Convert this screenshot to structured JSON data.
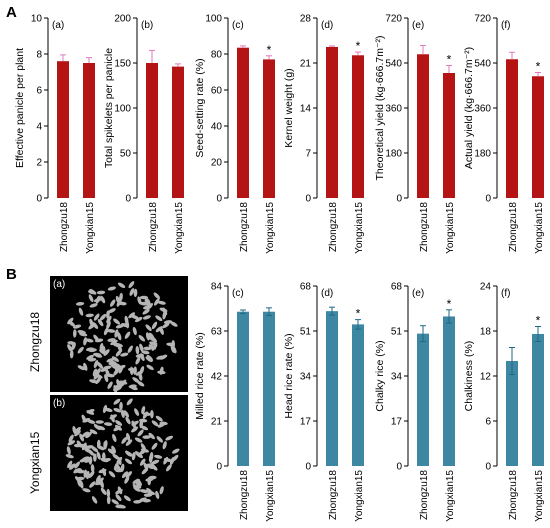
{
  "panel_letters": [
    "A",
    "B"
  ],
  "variety_labels": [
    "Zhongzu18",
    "Yongxian15"
  ],
  "photo_labels": [
    "(a)",
    "(b)"
  ],
  "colors": {
    "red_bar": "#b41414",
    "blue_bar": "#3d87a3",
    "photo_bg": "#000000",
    "grain": "#b5b5b5"
  },
  "chart_data": [
    {
      "type": "bar",
      "group": "A",
      "panel": "(a)",
      "ylabel": "Effective panicle per plant",
      "categories": [
        "Zhongzu18",
        "Yongxian15"
      ],
      "values": [
        7.6,
        7.5
      ],
      "errors": [
        0.35,
        0.3
      ],
      "ylim": [
        0,
        10
      ],
      "ticks": [
        0,
        2,
        4,
        6,
        8,
        10
      ],
      "significance": [
        "",
        ""
      ]
    },
    {
      "type": "bar",
      "group": "A",
      "panel": "(b)",
      "ylabel": "Total spikelets per panicle",
      "categories": [
        "Zhongzu18",
        "Yongxian15"
      ],
      "values": [
        150,
        146
      ],
      "errors": [
        14,
        3
      ],
      "ylim": [
        0,
        200
      ],
      "ticks": [
        0,
        50,
        100,
        150,
        200
      ],
      "significance": [
        "",
        ""
      ]
    },
    {
      "type": "bar",
      "group": "A",
      "panel": "(c)",
      "ylabel": "Seed-setting rate (%)",
      "categories": [
        "Zhongzu18",
        "Yongxian15"
      ],
      "values": [
        83.5,
        77
      ],
      "errors": [
        1,
        2
      ],
      "ylim": [
        0,
        100
      ],
      "ticks": [
        0,
        20,
        40,
        60,
        80,
        100
      ],
      "significance": [
        "",
        "*"
      ]
    },
    {
      "type": "bar",
      "group": "A",
      "panel": "(d)",
      "ylabel": "Kernel weight (g)",
      "categories": [
        "Zhongzu18",
        "Yongxian15"
      ],
      "values": [
        23.5,
        22.2
      ],
      "errors": [
        0.15,
        0.5
      ],
      "ylim": [
        0,
        28
      ],
      "ticks": [
        0,
        7,
        14,
        21,
        28
      ],
      "significance": [
        "",
        "*"
      ]
    },
    {
      "type": "bar",
      "group": "A",
      "panel": "(e)",
      "ylabel": "Theoretical yield (kg·666.7m⁻²)",
      "categories": [
        "Zhongzu18",
        "Yongxian15"
      ],
      "values": [
        575,
        500
      ],
      "errors": [
        35,
        30
      ],
      "ylim": [
        0,
        720
      ],
      "ticks": [
        0,
        180,
        360,
        540,
        720
      ],
      "significance": [
        "",
        "*"
      ]
    },
    {
      "type": "bar",
      "group": "A",
      "panel": "(f)",
      "ylabel": "Actual yield (kg·666.7m⁻²)",
      "categories": [
        "Zhongzu18",
        "Yongxian15"
      ],
      "values": [
        555,
        487
      ],
      "errors": [
        28,
        15
      ],
      "ylim": [
        0,
        720
      ],
      "ticks": [
        0,
        180,
        360,
        540,
        720
      ],
      "significance": [
        "",
        "*"
      ]
    },
    {
      "type": "bar",
      "group": "B",
      "panel": "(c)",
      "ylabel": "Milled rice rate (%)",
      "categories": [
        "Zhongzu18",
        "Yongxian15"
      ],
      "values": [
        72,
        72
      ],
      "errors": [
        0.8,
        1.8
      ],
      "ylim": [
        0,
        84
      ],
      "ticks": [
        0,
        21,
        42,
        63,
        84
      ],
      "significance": [
        "",
        ""
      ]
    },
    {
      "type": "bar",
      "group": "B",
      "panel": "(d)",
      "ylabel": "Head rice rate (%)",
      "categories": [
        "Zhongzu18",
        "Yongxian15"
      ],
      "values": [
        58.5,
        53.5
      ],
      "errors": [
        1.5,
        1.8
      ],
      "ylim": [
        0,
        68
      ],
      "ticks": [
        0,
        17,
        34,
        51,
        68
      ],
      "significance": [
        "",
        "*"
      ]
    },
    {
      "type": "bar",
      "group": "B",
      "panel": "(e)",
      "ylabel": "Chalky rice (%)",
      "categories": [
        "Zhongzu18",
        "Yongxian15"
      ],
      "values": [
        50,
        56.5
      ],
      "errors": [
        3,
        2.5
      ],
      "ylim": [
        0,
        68
      ],
      "ticks": [
        0,
        17,
        34,
        51,
        68
      ],
      "significance": [
        "",
        "*"
      ]
    },
    {
      "type": "bar",
      "group": "B",
      "panel": "(f)",
      "ylabel": "Chalkiness (%)",
      "categories": [
        "Zhongzu18",
        "Yongxian15"
      ],
      "values": [
        14,
        17.6
      ],
      "errors": [
        1.8,
        1
      ],
      "ylim": [
        0,
        24
      ],
      "ticks": [
        0,
        6,
        12,
        18,
        24
      ],
      "significance": [
        "",
        "*"
      ]
    }
  ]
}
